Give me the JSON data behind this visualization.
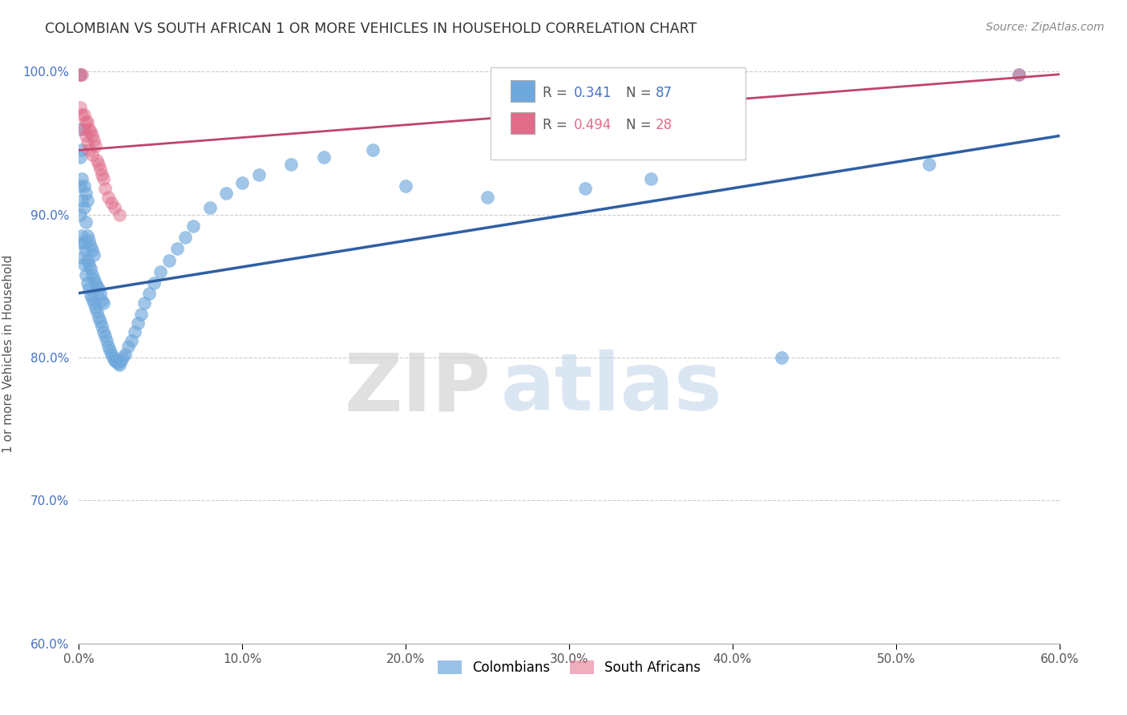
{
  "title": "COLOMBIAN VS SOUTH AFRICAN 1 OR MORE VEHICLES IN HOUSEHOLD CORRELATION CHART",
  "source": "Source: ZipAtlas.com",
  "xlabel": "",
  "ylabel": "1 or more Vehicles in Household",
  "xlim": [
    0.0,
    0.6
  ],
  "ylim": [
    0.6,
    1.005
  ],
  "xticks": [
    0.0,
    0.1,
    0.2,
    0.3,
    0.4,
    0.5,
    0.6
  ],
  "xticklabels": [
    "0.0%",
    "10.0%",
    "20.0%",
    "30.0%",
    "40.0%",
    "50.0%",
    "60.0%"
  ],
  "yticks": [
    0.6,
    0.7,
    0.8,
    0.9,
    1.0
  ],
  "yticklabels": [
    "60.0%",
    "70.0%",
    "80.0%",
    "90.0%",
    "100.0%"
  ],
  "legend_r_blue": "R = 0.341",
  "legend_n_blue": "N = 87",
  "legend_r_pink": "R = 0.494",
  "legend_n_pink": "N = 28",
  "blue_color": "#6fa8dc",
  "pink_color": "#e06c8a",
  "trendline_blue": "#2e5fa3",
  "trendline_pink": "#c0446a",
  "blue_trend_x": [
    0.0,
    0.6
  ],
  "blue_trend_y": [
    0.845,
    0.955
  ],
  "pink_trend_x": [
    0.0,
    0.6
  ],
  "pink_trend_y": [
    0.945,
    0.998
  ],
  "watermark_zip": "ZIP",
  "watermark_atlas": "atlas",
  "colombians_x": [
    0.001,
    0.001,
    0.001,
    0.001,
    0.001,
    0.001,
    0.002,
    0.002,
    0.002,
    0.002,
    0.002,
    0.003,
    0.003,
    0.003,
    0.003,
    0.004,
    0.004,
    0.004,
    0.004,
    0.005,
    0.005,
    0.005,
    0.005,
    0.006,
    0.006,
    0.006,
    0.007,
    0.007,
    0.007,
    0.008,
    0.008,
    0.008,
    0.009,
    0.009,
    0.009,
    0.01,
    0.01,
    0.011,
    0.011,
    0.012,
    0.012,
    0.013,
    0.013,
    0.014,
    0.014,
    0.015,
    0.015,
    0.016,
    0.017,
    0.018,
    0.019,
    0.02,
    0.021,
    0.022,
    0.023,
    0.024,
    0.025,
    0.026,
    0.027,
    0.028,
    0.03,
    0.032,
    0.034,
    0.036,
    0.038,
    0.04,
    0.043,
    0.046,
    0.05,
    0.055,
    0.06,
    0.065,
    0.07,
    0.08,
    0.09,
    0.1,
    0.11,
    0.13,
    0.15,
    0.18,
    0.2,
    0.25,
    0.31,
    0.35,
    0.43,
    0.52,
    0.575
  ],
  "colombians_y": [
    0.88,
    0.9,
    0.92,
    0.94,
    0.96,
    0.998,
    0.87,
    0.885,
    0.91,
    0.925,
    0.945,
    0.865,
    0.88,
    0.905,
    0.92,
    0.858,
    0.875,
    0.895,
    0.915,
    0.852,
    0.868,
    0.885,
    0.91,
    0.848,
    0.865,
    0.882,
    0.844,
    0.862,
    0.878,
    0.841,
    0.858,
    0.875,
    0.838,
    0.855,
    0.872,
    0.835,
    0.852,
    0.832,
    0.85,
    0.828,
    0.848,
    0.825,
    0.845,
    0.822,
    0.84,
    0.818,
    0.838,
    0.815,
    0.812,
    0.808,
    0.805,
    0.802,
    0.8,
    0.798,
    0.797,
    0.796,
    0.795,
    0.798,
    0.8,
    0.802,
    0.808,
    0.812,
    0.818,
    0.824,
    0.83,
    0.838,
    0.845,
    0.852,
    0.86,
    0.868,
    0.876,
    0.884,
    0.892,
    0.905,
    0.915,
    0.922,
    0.928,
    0.935,
    0.94,
    0.945,
    0.92,
    0.912,
    0.918,
    0.925,
    0.8,
    0.935,
    0.998
  ],
  "south_africans_x": [
    0.001,
    0.001,
    0.002,
    0.002,
    0.003,
    0.003,
    0.004,
    0.004,
    0.005,
    0.005,
    0.006,
    0.006,
    0.007,
    0.008,
    0.008,
    0.009,
    0.01,
    0.011,
    0.012,
    0.013,
    0.014,
    0.015,
    0.016,
    0.018,
    0.02,
    0.022,
    0.025,
    0.575
  ],
  "south_africans_y": [
    0.998,
    0.975,
    0.998,
    0.97,
    0.97,
    0.96,
    0.965,
    0.955,
    0.965,
    0.95,
    0.96,
    0.945,
    0.958,
    0.955,
    0.942,
    0.952,
    0.948,
    0.938,
    0.935,
    0.932,
    0.928,
    0.925,
    0.918,
    0.912,
    0.908,
    0.905,
    0.9,
    0.998
  ]
}
